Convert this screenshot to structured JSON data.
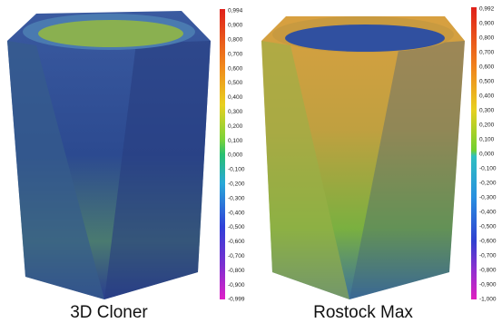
{
  "panels": [
    {
      "caption": "3D Cloner",
      "scale": [
        "0,994",
        "0,900",
        "0,800",
        "0,700",
        "0,600",
        "0,500",
        "0,400",
        "0,300",
        "0,200",
        "0,100",
        "0,000",
        "-0,100",
        "-0,200",
        "-0,300",
        "-0,400",
        "-0,500",
        "-0,600",
        "-0,700",
        "-0,800",
        "-0,900",
        "-0,999"
      ]
    },
    {
      "caption": "Rostock Max",
      "scale": [
        "0,992",
        "0,900",
        "0,800",
        "0,700",
        "0,600",
        "0,500",
        "0,400",
        "0,300",
        "0,200",
        "0,100",
        "0,000",
        "-0,100",
        "-0,200",
        "-0,300",
        "-0,400",
        "-0,500",
        "-0,600",
        "-0,700",
        "-0,800",
        "-0,900",
        "-1,000"
      ]
    }
  ]
}
